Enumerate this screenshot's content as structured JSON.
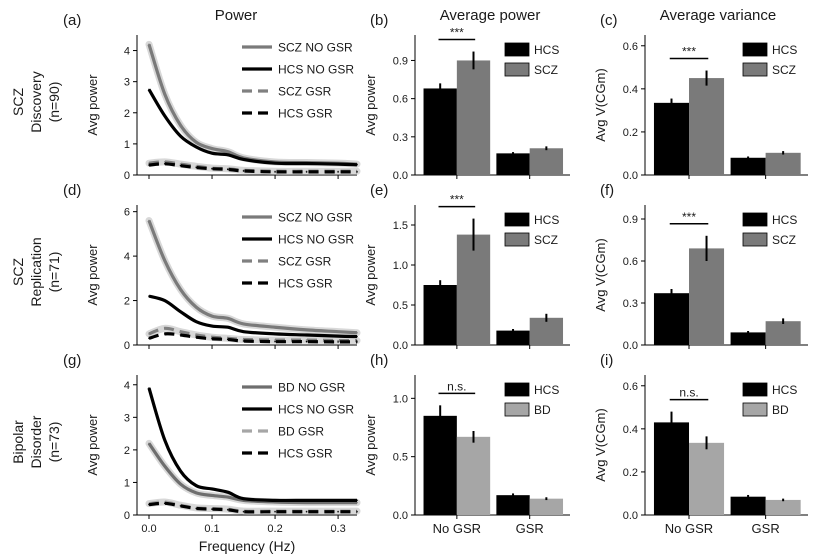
{
  "column_titles": [
    "Power",
    "Average power",
    "Average variance"
  ],
  "row_labels": [
    [
      "SCZ",
      "Discovery",
      "(n=90)"
    ],
    [
      "SCZ",
      "Replication",
      "(n=71)"
    ],
    [
      "Bipolar",
      "Disorder",
      "(n=73)"
    ]
  ],
  "colors": {
    "scz_no_gsr": "#7a7a7a",
    "hcs": "#000000",
    "scz_gsr": "#808080",
    "bd": "#a6a6a6",
    "bd_no_gsr": "#6e6e6e",
    "error_bar": "#000000",
    "ci_band": "#c8c8c8"
  },
  "chart_data": [
    {
      "id": "a",
      "panel_label": "(a)",
      "type": "line",
      "title": "",
      "xlabel": "",
      "ylabel": "Avg power",
      "xlim": [
        0,
        0.33
      ],
      "ylim": [
        0,
        4.5
      ],
      "xticks": [
        0.0,
        0.1,
        0.2,
        0.3
      ],
      "xtick_labels": [
        "",
        "",
        "",
        ""
      ],
      "yticks": [
        0,
        1,
        2,
        3,
        4
      ],
      "ytick_labels": [
        "0",
        "1",
        "2",
        "3",
        "4"
      ],
      "x": [
        0.0,
        0.025,
        0.05,
        0.075,
        0.1,
        0.125,
        0.15,
        0.2,
        0.25,
        0.3,
        0.33
      ],
      "series": [
        {
          "name": "SCZ NO GSR",
          "color": "#7a7a7a",
          "dash": false,
          "band": true,
          "values": [
            4.2,
            2.6,
            1.6,
            1.05,
            0.85,
            0.75,
            0.55,
            0.42,
            0.4,
            0.38,
            0.35
          ]
        },
        {
          "name": "HCS NO GSR",
          "color": "#000000",
          "dash": false,
          "band": false,
          "values": [
            2.75,
            1.9,
            1.25,
            0.9,
            0.7,
            0.65,
            0.5,
            0.38,
            0.37,
            0.35,
            0.33
          ]
        },
        {
          "name": "SCZ GSR",
          "color": "#808080",
          "dash": true,
          "band": true,
          "values": [
            0.38,
            0.42,
            0.35,
            0.28,
            0.22,
            0.2,
            0.15,
            0.12,
            0.12,
            0.12,
            0.12
          ]
        },
        {
          "name": "HCS GSR",
          "color": "#000000",
          "dash": true,
          "band": false,
          "values": [
            0.32,
            0.36,
            0.3,
            0.24,
            0.2,
            0.18,
            0.13,
            0.1,
            0.1,
            0.1,
            0.1
          ]
        }
      ]
    },
    {
      "id": "b",
      "panel_label": "(b)",
      "type": "bar",
      "title": "",
      "xlabel": "",
      "ylabel": "Avg power",
      "ylim": [
        0,
        1.1
      ],
      "yticks": [
        0,
        0.3,
        0.6,
        0.9
      ],
      "ytick_labels": [
        "0.0",
        "0.3",
        "0.6",
        "0.9"
      ],
      "categories": [
        "No GSR",
        "GSR"
      ],
      "show_categories": false,
      "series": [
        {
          "name": "HCS",
          "color": "#000000",
          "values": [
            0.68,
            0.17
          ],
          "errors": [
            0.04,
            0.01
          ]
        },
        {
          "name": "SCZ",
          "color": "#7a7a7a",
          "values": [
            0.9,
            0.21
          ],
          "errors": [
            0.07,
            0.015
          ]
        }
      ],
      "annotation": "***"
    },
    {
      "id": "c",
      "panel_label": "(c)",
      "type": "bar",
      "title": "",
      "xlabel": "",
      "ylabel": "Avg V(CGm)",
      "ylim": [
        0,
        0.65
      ],
      "yticks": [
        0,
        0.2,
        0.4,
        0.6
      ],
      "ytick_labels": [
        "0.0",
        "0.2",
        "0.4",
        "0.6"
      ],
      "categories": [
        "No GSR",
        "GSR"
      ],
      "show_categories": false,
      "series": [
        {
          "name": "HCS",
          "color": "#000000",
          "values": [
            0.335,
            0.08
          ],
          "errors": [
            0.02,
            0.006
          ]
        },
        {
          "name": "SCZ",
          "color": "#7a7a7a",
          "values": [
            0.45,
            0.103
          ],
          "errors": [
            0.035,
            0.008
          ]
        }
      ],
      "annotation": "***"
    },
    {
      "id": "d",
      "panel_label": "(d)",
      "type": "line",
      "title": "",
      "xlabel": "",
      "ylabel": "Avg power",
      "xlim": [
        0,
        0.33
      ],
      "ylim": [
        0,
        6.3
      ],
      "xticks": [
        0.0,
        0.1,
        0.2,
        0.3
      ],
      "xtick_labels": [
        "",
        "",
        "",
        ""
      ],
      "yticks": [
        0,
        2,
        4,
        6
      ],
      "ytick_labels": [
        "0",
        "2",
        "4",
        "6"
      ],
      "x": [
        0.0,
        0.025,
        0.05,
        0.075,
        0.1,
        0.125,
        0.15,
        0.2,
        0.25,
        0.3,
        0.33
      ],
      "series": [
        {
          "name": "SCZ NO GSR",
          "color": "#7a7a7a",
          "dash": false,
          "band": true,
          "values": [
            5.6,
            3.8,
            2.5,
            1.7,
            1.3,
            1.2,
            0.95,
            0.8,
            0.68,
            0.6,
            0.55
          ]
        },
        {
          "name": "HCS NO GSR",
          "color": "#000000",
          "dash": false,
          "band": false,
          "values": [
            2.2,
            2.0,
            1.5,
            1.05,
            0.85,
            0.8,
            0.6,
            0.5,
            0.45,
            0.4,
            0.38
          ]
        },
        {
          "name": "SCZ GSR",
          "color": "#808080",
          "dash": true,
          "band": true,
          "values": [
            0.5,
            0.75,
            0.6,
            0.45,
            0.35,
            0.3,
            0.25,
            0.22,
            0.22,
            0.2,
            0.2
          ]
        },
        {
          "name": "HCS GSR",
          "color": "#000000",
          "dash": true,
          "band": false,
          "values": [
            0.3,
            0.5,
            0.45,
            0.35,
            0.28,
            0.25,
            0.18,
            0.15,
            0.15,
            0.14,
            0.14
          ]
        }
      ]
    },
    {
      "id": "e",
      "panel_label": "(e)",
      "type": "bar",
      "title": "",
      "xlabel": "",
      "ylabel": "Avg power",
      "ylim": [
        0,
        1.75
      ],
      "yticks": [
        0,
        0.5,
        1.0,
        1.5
      ],
      "ytick_labels": [
        "0.0",
        "0.5",
        "1.0",
        "1.5"
      ],
      "categories": [
        "No GSR",
        "GSR"
      ],
      "show_categories": false,
      "series": [
        {
          "name": "HCS",
          "color": "#000000",
          "values": [
            0.75,
            0.18
          ],
          "errors": [
            0.06,
            0.02
          ]
        },
        {
          "name": "SCZ",
          "color": "#7a7a7a",
          "values": [
            1.38,
            0.34
          ],
          "errors": [
            0.2,
            0.05
          ]
        }
      ],
      "annotation": "***"
    },
    {
      "id": "f",
      "panel_label": "(f)",
      "type": "bar",
      "title": "",
      "xlabel": "",
      "ylabel": "Avg V(CGm)",
      "ylim": [
        0,
        1.0
      ],
      "yticks": [
        0,
        0.3,
        0.6,
        0.9
      ],
      "ytick_labels": [
        "0.0",
        "0.3",
        "0.6",
        "0.9"
      ],
      "categories": [
        "No GSR",
        "GSR"
      ],
      "show_categories": false,
      "series": [
        {
          "name": "HCS",
          "color": "#000000",
          "values": [
            0.37,
            0.09
          ],
          "errors": [
            0.03,
            0.01
          ]
        },
        {
          "name": "SCZ",
          "color": "#7a7a7a",
          "values": [
            0.69,
            0.17
          ],
          "errors": [
            0.09,
            0.02
          ]
        }
      ],
      "annotation": "***"
    },
    {
      "id": "g",
      "panel_label": "(g)",
      "type": "line",
      "title": "",
      "xlabel": "Frequency (Hz)",
      "ylabel": "Avg power",
      "xlim": [
        0,
        0.33
      ],
      "ylim": [
        0,
        4.3
      ],
      "xticks": [
        0.0,
        0.1,
        0.2,
        0.3
      ],
      "xtick_labels": [
        "0.0",
        "0.1",
        "0.2",
        "0.3"
      ],
      "yticks": [
        0,
        1,
        2,
        3,
        4
      ],
      "ytick_labels": [
        "0",
        "1",
        "2",
        "3",
        "4"
      ],
      "x": [
        0.0,
        0.025,
        0.05,
        0.075,
        0.1,
        0.125,
        0.15,
        0.2,
        0.25,
        0.3,
        0.33
      ],
      "series": [
        {
          "name": "BD NO GSR",
          "color": "#6e6e6e",
          "dash": false,
          "band": true,
          "values": [
            2.2,
            1.5,
            0.95,
            0.68,
            0.6,
            0.55,
            0.45,
            0.4,
            0.38,
            0.38,
            0.38
          ]
        },
        {
          "name": "HCS NO GSR",
          "color": "#000000",
          "dash": false,
          "band": false,
          "values": [
            3.9,
            2.3,
            1.35,
            0.9,
            0.8,
            0.7,
            0.5,
            0.45,
            0.45,
            0.45,
            0.45
          ]
        },
        {
          "name": "BD GSR",
          "color": "#a6a6a6",
          "dash": true,
          "band": true,
          "values": [
            0.35,
            0.4,
            0.3,
            0.22,
            0.2,
            0.18,
            0.12,
            0.12,
            0.12,
            0.12,
            0.12
          ]
        },
        {
          "name": "HCS GSR",
          "color": "#000000",
          "dash": true,
          "band": false,
          "values": [
            0.32,
            0.36,
            0.28,
            0.2,
            0.18,
            0.16,
            0.1,
            0.1,
            0.1,
            0.1,
            0.1
          ]
        }
      ]
    },
    {
      "id": "h",
      "panel_label": "(h)",
      "type": "bar",
      "title": "",
      "xlabel": "",
      "ylabel": "Avg power",
      "ylim": [
        0,
        1.2
      ],
      "yticks": [
        0,
        0.5,
        1.0
      ],
      "ytick_labels": [
        "0.0",
        "0.5",
        "1.0"
      ],
      "categories": [
        "No GSR",
        "GSR"
      ],
      "show_categories": true,
      "series": [
        {
          "name": "HCS",
          "color": "#000000",
          "values": [
            0.85,
            0.17
          ],
          "errors": [
            0.09,
            0.015
          ]
        },
        {
          "name": "BD",
          "color": "#a6a6a6",
          "values": [
            0.67,
            0.14
          ],
          "errors": [
            0.05,
            0.012
          ]
        }
      ],
      "annotation": "n.s."
    },
    {
      "id": "i",
      "panel_label": "(i)",
      "type": "bar",
      "title": "",
      "xlabel": "",
      "ylabel": "Avg V(CGm)",
      "ylim": [
        0,
        0.65
      ],
      "yticks": [
        0,
        0.2,
        0.4,
        0.6
      ],
      "ytick_labels": [
        "0.0",
        "0.2",
        "0.4",
        "0.6"
      ],
      "categories": [
        "No GSR",
        "GSR"
      ],
      "show_categories": true,
      "series": [
        {
          "name": "HCS",
          "color": "#000000",
          "values": [
            0.43,
            0.085
          ],
          "errors": [
            0.05,
            0.008
          ]
        },
        {
          "name": "BD",
          "color": "#a6a6a6",
          "values": [
            0.335,
            0.07
          ],
          "errors": [
            0.03,
            0.006
          ]
        }
      ],
      "annotation": "n.s."
    }
  ]
}
